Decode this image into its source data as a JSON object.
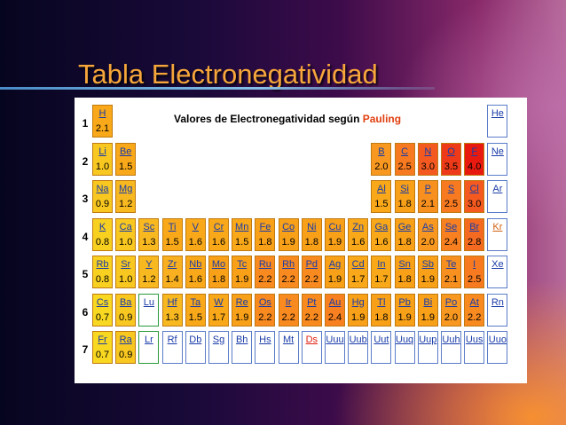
{
  "slide": {
    "title": "Tabla Electronegatividad"
  },
  "table": {
    "heading_prefix": "Valores de Electronegatividad según ",
    "heading_accent": "Pauling",
    "periods": [
      "1",
      "2",
      "3",
      "4",
      "5",
      "6",
      "7"
    ],
    "elements": [
      {
        "symbol": "H",
        "value": "2.1",
        "col": 1,
        "row": 1,
        "color": "#f8a818"
      },
      {
        "symbol": "He",
        "value": "",
        "col": 18,
        "row": 1,
        "color": "#ffffff"
      },
      {
        "symbol": "Li",
        "value": "1.0",
        "col": 1,
        "row": 2,
        "color": "#f8c820"
      },
      {
        "symbol": "Be",
        "value": "1.5",
        "col": 2,
        "row": 2,
        "color": "#f8a818"
      },
      {
        "symbol": "B",
        "value": "2.0",
        "col": 13,
        "row": 2,
        "color": "#f89820"
      },
      {
        "symbol": "C",
        "value": "2.5",
        "col": 14,
        "row": 2,
        "color": "#f87a20"
      },
      {
        "symbol": "N",
        "value": "3.0",
        "col": 15,
        "row": 2,
        "color": "#f45a20"
      },
      {
        "symbol": "O",
        "value": "3.5",
        "col": 16,
        "row": 2,
        "color": "#ee3a18"
      },
      {
        "symbol": "F",
        "value": "4.0",
        "col": 17,
        "row": 2,
        "color": "#e81a10"
      },
      {
        "symbol": "Ne",
        "value": "",
        "col": 18,
        "row": 2,
        "color": "#ffffff"
      },
      {
        "symbol": "Na",
        "value": "0.9",
        "col": 1,
        "row": 3,
        "color": "#f8c820"
      },
      {
        "symbol": "Mg",
        "value": "1.2",
        "col": 2,
        "row": 3,
        "color": "#f8b820"
      },
      {
        "symbol": "Al",
        "value": "1.5",
        "col": 13,
        "row": 3,
        "color": "#f8a818"
      },
      {
        "symbol": "Si",
        "value": "1.8",
        "col": 14,
        "row": 3,
        "color": "#f8a018"
      },
      {
        "symbol": "P",
        "value": "2.1",
        "col": 15,
        "row": 3,
        "color": "#f89020"
      },
      {
        "symbol": "S",
        "value": "2.5",
        "col": 16,
        "row": 3,
        "color": "#f87a20"
      },
      {
        "symbol": "Cl",
        "value": "3.0",
        "col": 17,
        "row": 3,
        "color": "#f45a20"
      },
      {
        "symbol": "Ar",
        "value": "",
        "col": 18,
        "row": 3,
        "color": "#ffffff"
      },
      {
        "symbol": "K",
        "value": "0.8",
        "col": 1,
        "row": 4,
        "color": "#f8d020"
      },
      {
        "symbol": "Ca",
        "value": "1.0",
        "col": 2,
        "row": 4,
        "color": "#f8c820"
      },
      {
        "symbol": "Sc",
        "value": "1.3",
        "col": 3,
        "row": 4,
        "color": "#f8b820"
      },
      {
        "symbol": "Ti",
        "value": "1.5",
        "col": 4,
        "row": 4,
        "color": "#f8a818"
      },
      {
        "symbol": "V",
        "value": "1.6",
        "col": 5,
        "row": 4,
        "color": "#f8a818"
      },
      {
        "symbol": "Cr",
        "value": "1.6",
        "col": 6,
        "row": 4,
        "color": "#f8a818"
      },
      {
        "symbol": "Mn",
        "value": "1.5",
        "col": 7,
        "row": 4,
        "color": "#f8a818"
      },
      {
        "symbol": "Fe",
        "value": "1.8",
        "col": 8,
        "row": 4,
        "color": "#f8a018"
      },
      {
        "symbol": "Co",
        "value": "1.9",
        "col": 9,
        "row": 4,
        "color": "#f8a018"
      },
      {
        "symbol": "Ni",
        "value": "1.8",
        "col": 10,
        "row": 4,
        "color": "#f8a018"
      },
      {
        "symbol": "Cu",
        "value": "1.9",
        "col": 11,
        "row": 4,
        "color": "#f8a018"
      },
      {
        "symbol": "Zn",
        "value": "1.6",
        "col": 12,
        "row": 4,
        "color": "#f8a818"
      },
      {
        "symbol": "Ga",
        "value": "1.6",
        "col": 13,
        "row": 4,
        "color": "#f8a818"
      },
      {
        "symbol": "Ge",
        "value": "1.8",
        "col": 14,
        "row": 4,
        "color": "#f8a018"
      },
      {
        "symbol": "As",
        "value": "2.0",
        "col": 15,
        "row": 4,
        "color": "#f89820"
      },
      {
        "symbol": "Se",
        "value": "2.4",
        "col": 16,
        "row": 4,
        "color": "#f88020"
      },
      {
        "symbol": "Br",
        "value": "2.8",
        "col": 17,
        "row": 4,
        "color": "#f46a20"
      },
      {
        "symbol": "Kr",
        "value": "",
        "col": 18,
        "row": 4,
        "color": "#ffffff"
      },
      {
        "symbol": "Rb",
        "value": "0.8",
        "col": 1,
        "row": 5,
        "color": "#f8d020"
      },
      {
        "symbol": "Sr",
        "value": "1.0",
        "col": 2,
        "row": 5,
        "color": "#f8c820"
      },
      {
        "symbol": "Y",
        "value": "1.2",
        "col": 3,
        "row": 5,
        "color": "#f8b820"
      },
      {
        "symbol": "Zr",
        "value": "1.4",
        "col": 4,
        "row": 5,
        "color": "#f8b020"
      },
      {
        "symbol": "Nb",
        "value": "1.6",
        "col": 5,
        "row": 5,
        "color": "#f8a818"
      },
      {
        "symbol": "Mo",
        "value": "1.8",
        "col": 6,
        "row": 5,
        "color": "#f8a018"
      },
      {
        "symbol": "Tc",
        "value": "1.9",
        "col": 7,
        "row": 5,
        "color": "#f8a018"
      },
      {
        "symbol": "Ru",
        "value": "2.2",
        "col": 8,
        "row": 5,
        "color": "#f88a20"
      },
      {
        "symbol": "Rh",
        "value": "2.2",
        "col": 9,
        "row": 5,
        "color": "#f88a20"
      },
      {
        "symbol": "Pd",
        "value": "2.2",
        "col": 10,
        "row": 5,
        "color": "#f88a20"
      },
      {
        "symbol": "Ag",
        "value": "1.9",
        "col": 11,
        "row": 5,
        "color": "#f8a018"
      },
      {
        "symbol": "Cd",
        "value": "1.7",
        "col": 12,
        "row": 5,
        "color": "#f8a818"
      },
      {
        "symbol": "In",
        "value": "1.7",
        "col": 13,
        "row": 5,
        "color": "#f8a818"
      },
      {
        "symbol": "Sn",
        "value": "1.8",
        "col": 14,
        "row": 5,
        "color": "#f8a018"
      },
      {
        "symbol": "Sb",
        "value": "1.9",
        "col": 15,
        "row": 5,
        "color": "#f8a018"
      },
      {
        "symbol": "Te",
        "value": "2.1",
        "col": 16,
        "row": 5,
        "color": "#f89020"
      },
      {
        "symbol": "I",
        "value": "2.5",
        "col": 17,
        "row": 5,
        "color": "#f87a20"
      },
      {
        "symbol": "Xe",
        "value": "",
        "col": 18,
        "row": 5,
        "color": "#ffffff"
      },
      {
        "symbol": "Cs",
        "value": "0.7",
        "col": 1,
        "row": 6,
        "color": "#f8d820"
      },
      {
        "symbol": "Ba",
        "value": "0.9",
        "col": 2,
        "row": 6,
        "color": "#f8c820"
      },
      {
        "symbol": "Lu",
        "value": "",
        "col": 3,
        "row": 6,
        "color": "#ffffff"
      },
      {
        "symbol": "Hf",
        "value": "1.3",
        "col": 4,
        "row": 6,
        "color": "#f8b820"
      },
      {
        "symbol": "Ta",
        "value": "1.5",
        "col": 5,
        "row": 6,
        "color": "#f8a818"
      },
      {
        "symbol": "W",
        "value": "1.7",
        "col": 6,
        "row": 6,
        "color": "#f8a818"
      },
      {
        "symbol": "Re",
        "value": "1.9",
        "col": 7,
        "row": 6,
        "color": "#f8a018"
      },
      {
        "symbol": "Os",
        "value": "2.2",
        "col": 8,
        "row": 6,
        "color": "#f88a20"
      },
      {
        "symbol": "Ir",
        "value": "2.2",
        "col": 9,
        "row": 6,
        "color": "#f88a20"
      },
      {
        "symbol": "Pt",
        "value": "2.2",
        "col": 10,
        "row": 6,
        "color": "#f88a20"
      },
      {
        "symbol": "Au",
        "value": "2.4",
        "col": 11,
        "row": 6,
        "color": "#f88020"
      },
      {
        "symbol": "Hg",
        "value": "1.9",
        "col": 12,
        "row": 6,
        "color": "#f8a018"
      },
      {
        "symbol": "Tl",
        "value": "1.8",
        "col": 13,
        "row": 6,
        "color": "#f8a018"
      },
      {
        "symbol": "Pb",
        "value": "1.9",
        "col": 14,
        "row": 6,
        "color": "#f8a018"
      },
      {
        "symbol": "Bi",
        "value": "1.9",
        "col": 15,
        "row": 6,
        "color": "#f8a018"
      },
      {
        "symbol": "Po",
        "value": "2.0",
        "col": 16,
        "row": 6,
        "color": "#f89820"
      },
      {
        "symbol": "At",
        "value": "2.2",
        "col": 17,
        "row": 6,
        "color": "#f88a20"
      },
      {
        "symbol": "Rn",
        "value": "",
        "col": 18,
        "row": 6,
        "color": "#ffffff"
      },
      {
        "symbol": "Fr",
        "value": "0.7",
        "col": 1,
        "row": 7,
        "color": "#f8d820"
      },
      {
        "symbol": "Ra",
        "value": "0.9",
        "col": 2,
        "row": 7,
        "color": "#f8c820"
      },
      {
        "symbol": "Lr",
        "value": "",
        "col": 3,
        "row": 7,
        "color": "#ffffff"
      },
      {
        "symbol": "Rf",
        "value": "",
        "col": 4,
        "row": 7,
        "color": "#ffffff"
      },
      {
        "symbol": "Db",
        "value": "",
        "col": 5,
        "row": 7,
        "color": "#ffffff"
      },
      {
        "symbol": "Sg",
        "value": "",
        "col": 6,
        "row": 7,
        "color": "#ffffff"
      },
      {
        "symbol": "Bh",
        "value": "",
        "col": 7,
        "row": 7,
        "color": "#ffffff"
      },
      {
        "symbol": "Hs",
        "value": "",
        "col": 8,
        "row": 7,
        "color": "#ffffff"
      },
      {
        "symbol": "Mt",
        "value": "",
        "col": 9,
        "row": 7,
        "color": "#ffffff"
      },
      {
        "symbol": "Ds",
        "value": "",
        "col": 10,
        "row": 7,
        "color": "#ffffff"
      },
      {
        "symbol": "Uuu",
        "value": "",
        "col": 11,
        "row": 7,
        "color": "#ffffff"
      },
      {
        "symbol": "Uub",
        "value": "",
        "col": 12,
        "row": 7,
        "color": "#ffffff"
      },
      {
        "symbol": "Uut",
        "value": "",
        "col": 13,
        "row": 7,
        "color": "#ffffff"
      },
      {
        "symbol": "Uuq",
        "value": "",
        "col": 14,
        "row": 7,
        "color": "#ffffff"
      },
      {
        "symbol": "Uup",
        "value": "",
        "col": 15,
        "row": 7,
        "color": "#ffffff"
      },
      {
        "symbol": "Uuh",
        "value": "",
        "col": 16,
        "row": 7,
        "color": "#ffffff"
      },
      {
        "symbol": "Uus",
        "value": "",
        "col": 17,
        "row": 7,
        "color": "#ffffff"
      },
      {
        "symbol": "Uuo",
        "value": "",
        "col": 18,
        "row": 7,
        "color": "#ffffff"
      }
    ]
  }
}
